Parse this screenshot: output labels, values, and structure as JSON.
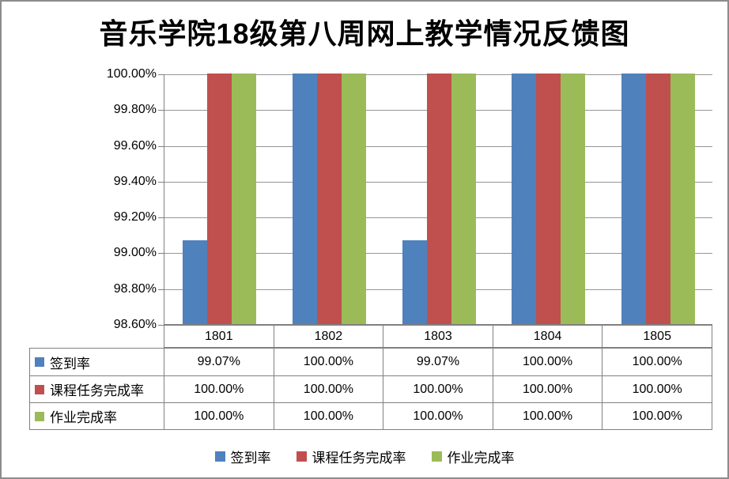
{
  "title": "音乐学院18级第八周网上教学情况反馈图",
  "chart_data": {
    "type": "bar",
    "title": "音乐学院18级第八周网上教学情况反馈图",
    "categories": [
      "1801",
      "1802",
      "1803",
      "1804",
      "1805"
    ],
    "series": [
      {
        "name": "签到率",
        "color": "#4F81BD",
        "values": [
          99.07,
          100.0,
          99.07,
          100.0,
          100.0
        ],
        "display_values": [
          "99.07%",
          "100.00%",
          "99.07%",
          "100.00%",
          "100.00%"
        ]
      },
      {
        "name": "课程任务完成率",
        "color": "#C0504D",
        "values": [
          100.0,
          100.0,
          100.0,
          100.0,
          100.0
        ],
        "display_values": [
          "100.00%",
          "100.00%",
          "100.00%",
          "100.00%",
          "100.00%"
        ]
      },
      {
        "name": "作业完成率",
        "color": "#9BBB59",
        "values": [
          100.0,
          100.0,
          100.0,
          100.0,
          100.0
        ],
        "display_values": [
          "100.00%",
          "100.00%",
          "100.00%",
          "100.00%",
          "100.00%"
        ]
      }
    ],
    "ylim": [
      98.6,
      100.0
    ],
    "ytick_step": 0.2,
    "ytick_labels": [
      "100.00%",
      "99.80%",
      "99.60%",
      "99.40%",
      "99.20%",
      "99.00%",
      "98.80%",
      "98.60%"
    ],
    "grid": true,
    "legend_position": "bottom",
    "data_table_shown": true
  },
  "colors": {
    "axis": "#808080",
    "gridline": "#969696",
    "table_border": "#808080",
    "frame_border": "#8C8C8C",
    "background": "#FFFFFF",
    "text": "#000000"
  }
}
